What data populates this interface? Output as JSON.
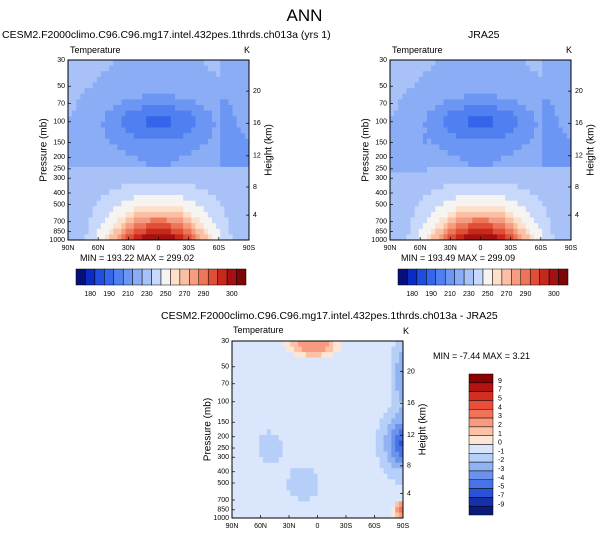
{
  "figure": {
    "main_title": "ANN"
  },
  "chart_data": [
    {
      "type": "heatmap",
      "title": "CESM2.F2000climo.C96.C96.mg17.intel.432pes.1thrds.ch013a (yrs 1)",
      "left_label": "Temperature",
      "right_label": "K",
      "ylabel": "Pressure (mb)",
      "y2label": "Height (km)",
      "ylim": [
        1000,
        30
      ],
      "yscale": "log",
      "y_ticks": [
        "30",
        "50",
        "70",
        "100",
        "150",
        "200",
        "250",
        "300",
        "400",
        "500",
        "700",
        "850",
        "1000"
      ],
      "y_tick_values": [
        30,
        50,
        70,
        100,
        150,
        200,
        250,
        300,
        400,
        500,
        700,
        850,
        1000
      ],
      "y2_ticks": [
        "20",
        "16",
        "12",
        "8",
        "4"
      ],
      "x_ticks": [
        "90N",
        "60N",
        "30N",
        "0",
        "30S",
        "60S",
        "90S"
      ],
      "xlim": [
        90,
        -90
      ],
      "stats_text": "MIN = 193.22   MAX = 299.02",
      "min": 193.22,
      "max": 299.02,
      "colorbar_labels": [
        "180",
        "190",
        "210",
        "230",
        "250",
        "270",
        "290",
        "300"
      ]
    },
    {
      "type": "heatmap",
      "title": "JRA25",
      "left_label": "Temperature",
      "right_label": "K",
      "ylabel": "Pressure (mb)",
      "y2label": "Height (km)",
      "ylim": [
        1000,
        30
      ],
      "yscale": "log",
      "y_ticks": [
        "30",
        "50",
        "70",
        "100",
        "150",
        "200",
        "250",
        "300",
        "400",
        "500",
        "700",
        "850",
        "1000"
      ],
      "y_tick_values": [
        30,
        50,
        70,
        100,
        150,
        200,
        250,
        300,
        400,
        500,
        700,
        850,
        1000
      ],
      "y2_ticks": [
        "20",
        "16",
        "12",
        "8",
        "4"
      ],
      "x_ticks": [
        "90N",
        "60N",
        "30N",
        "0",
        "30S",
        "60S",
        "90S"
      ],
      "xlim": [
        90,
        -90
      ],
      "stats_text": "MIN = 193.49   MAX = 299.09",
      "min": 193.49,
      "max": 299.09,
      "colorbar_labels": [
        "180",
        "190",
        "210",
        "230",
        "250",
        "270",
        "290",
        "300"
      ]
    },
    {
      "type": "heatmap",
      "title": "CESM2.F2000climo.C96.C96.mg17.intel.432pes.1thrds.ch013a - JRA25",
      "left_label": "Temperature",
      "right_label": "K",
      "ylabel": "Pressure (mb)",
      "y2label": "Height (km)",
      "ylim": [
        1000,
        30
      ],
      "yscale": "log",
      "y_ticks": [
        "30",
        "50",
        "70",
        "100",
        "150",
        "200",
        "250",
        "300",
        "400",
        "500",
        "700",
        "850",
        "1000"
      ],
      "y_tick_values": [
        30,
        50,
        70,
        100,
        150,
        200,
        250,
        300,
        400,
        500,
        700,
        850,
        1000
      ],
      "y2_ticks": [
        "20",
        "16",
        "12",
        "8",
        "4"
      ],
      "x_ticks": [
        "90N",
        "60N",
        "30N",
        "0",
        "30S",
        "60S",
        "90S"
      ],
      "xlim": [
        90,
        -90
      ],
      "stats_text": "MIN = -7.44  MAX =   3.21",
      "min": -7.44,
      "max": 3.21,
      "colorbar_labels": [
        "9",
        "7",
        "5",
        "4",
        "3",
        "2",
        "1",
        "0",
        "-1",
        "-2",
        "-3",
        "-4",
        "-5",
        "-7",
        "-9"
      ]
    }
  ],
  "colors": {
    "abs_scale": [
      "#05107a",
      "#0b2cc4",
      "#1f4de0",
      "#3565ea",
      "#5080f0",
      "#6c96f4",
      "#8aadf6",
      "#a8c2f8",
      "#c7d8fb",
      "#f6f4f0",
      "#fde0cc",
      "#fbc0a3",
      "#f59d7e",
      "#ee7658",
      "#e04e37",
      "#c6291b",
      "#a51010",
      "#7f0606"
    ],
    "diff_scale": [
      "#8b0000",
      "#b11212",
      "#d22f22",
      "#ea4d3a",
      "#f3735a",
      "#f89a7f",
      "#fbc2a8",
      "#fde6d5",
      "#d9e6fb",
      "#b6cff8",
      "#91b3f4",
      "#6b93ee",
      "#4673e6",
      "#2a52d6",
      "#1631a8",
      "#0a1a7a"
    ]
  }
}
